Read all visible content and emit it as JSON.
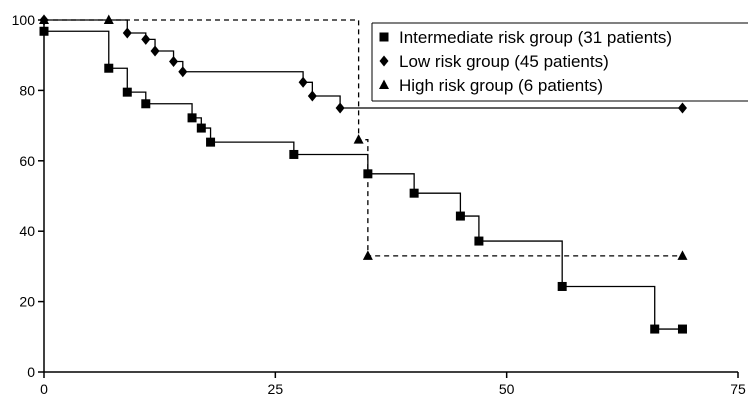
{
  "chart_data": {
    "type": "line",
    "title": "",
    "xlabel": "",
    "ylabel": "",
    "xlim": [
      0,
      75
    ],
    "ylim": [
      0,
      100
    ],
    "x_ticks": [
      0,
      25,
      50,
      75
    ],
    "y_ticks": [
      0,
      20,
      40,
      60,
      80,
      100
    ],
    "grid": false,
    "legend_position": "top-right",
    "series": [
      {
        "name": "Intermediate risk group (31 patients)",
        "marker": "square",
        "line_style": "solid",
        "step": true,
        "x": [
          0,
          7,
          9,
          11,
          16,
          17,
          18,
          27,
          35,
          40,
          45,
          47,
          56,
          66,
          69
        ],
        "y": [
          96.8,
          86.3,
          79.5,
          76.2,
          72.2,
          69.3,
          65.3,
          61.8,
          56.3,
          50.8,
          44.3,
          37.2,
          24.3,
          12.2,
          12.2
        ]
      },
      {
        "name": "Low risk group (45 patients)",
        "marker": "diamond",
        "line_style": "solid",
        "step": true,
        "x": [
          0,
          9,
          11,
          12,
          14,
          15,
          28,
          29,
          32,
          69
        ],
        "y": [
          100,
          96.3,
          94.5,
          91.2,
          88.2,
          85.3,
          82.3,
          78.4,
          75.0,
          75.0
        ]
      },
      {
        "name": "High risk group (6 patients)",
        "marker": "triangle",
        "line_style": "dashed",
        "step": true,
        "x": [
          0,
          7,
          34,
          35,
          69
        ],
        "y": [
          100,
          100,
          66.0,
          33.0,
          33.0
        ]
      }
    ]
  }
}
